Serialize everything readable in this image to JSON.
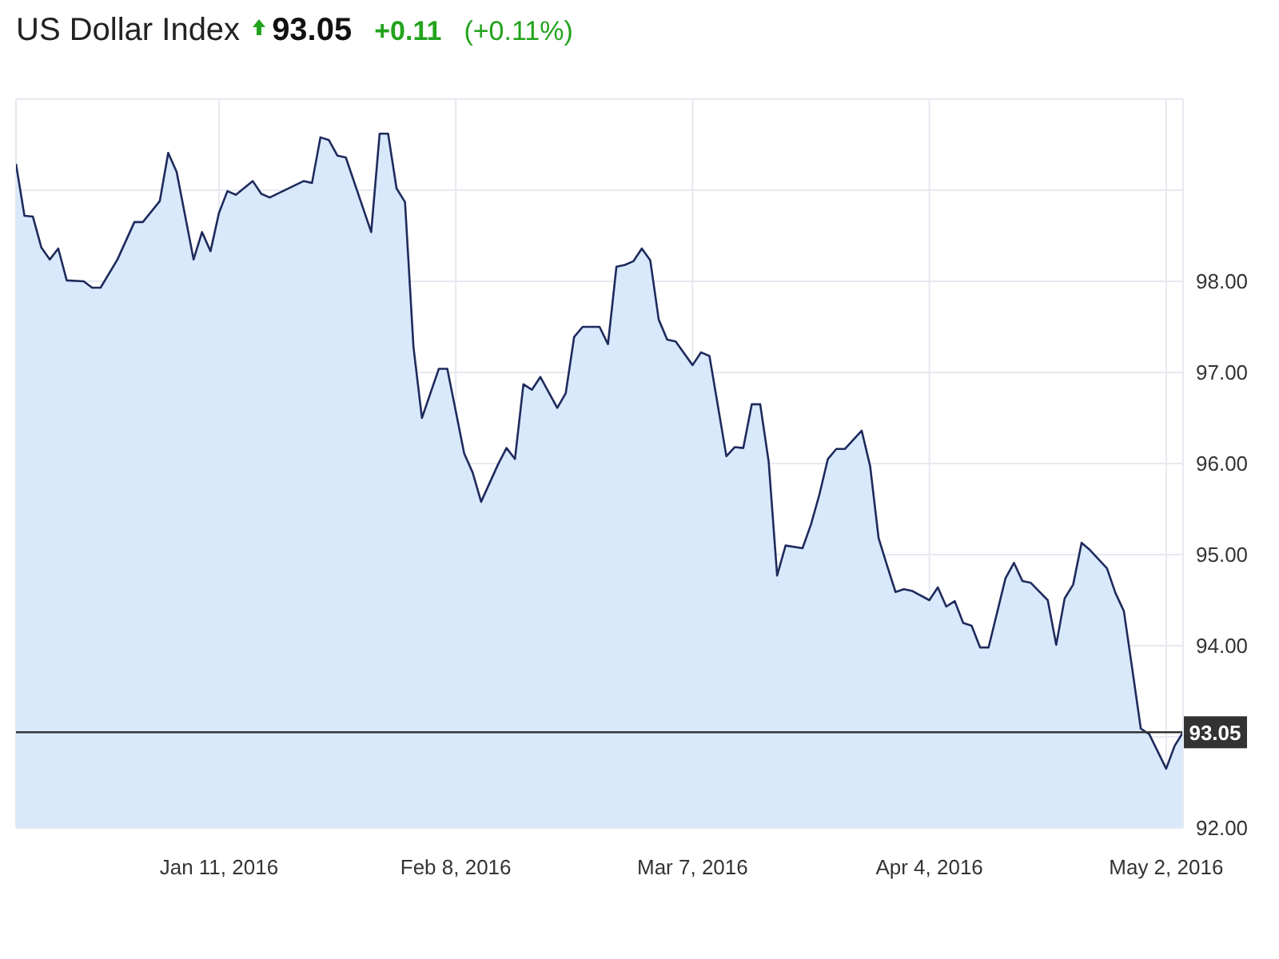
{
  "chart_data": {
    "type": "area",
    "title": "US Dollar Index",
    "annotations": [
      "93.05",
      "+0.11",
      "(+0.11%)"
    ],
    "x": [
      "2015-12-18",
      "2015-12-19",
      "2015-12-20",
      "2015-12-21",
      "2015-12-22",
      "2015-12-23",
      "2015-12-24",
      "2015-12-26",
      "2015-12-27",
      "2015-12-28",
      "2015-12-30",
      "2016-01-01",
      "2016-01-02",
      "2016-01-04",
      "2016-01-05",
      "2016-01-06",
      "2016-01-08",
      "2016-01-09",
      "2016-01-10",
      "2016-01-11",
      "2016-01-12",
      "2016-01-13",
      "2016-01-15",
      "2016-01-16",
      "2016-01-17",
      "2016-01-19",
      "2016-01-21",
      "2016-01-22",
      "2016-01-23",
      "2016-01-24",
      "2016-01-25",
      "2016-01-26",
      "2016-01-29",
      "2016-01-30",
      "2016-01-31",
      "2016-02-01",
      "2016-02-02",
      "2016-02-03",
      "2016-02-04",
      "2016-02-06",
      "2016-02-07",
      "2016-02-09",
      "2016-02-10",
      "2016-02-11",
      "2016-02-13",
      "2016-02-14",
      "2016-02-15",
      "2016-02-16",
      "2016-02-17",
      "2016-02-18",
      "2016-02-20",
      "2016-02-21",
      "2016-02-22",
      "2016-02-23",
      "2016-02-25",
      "2016-02-26",
      "2016-02-27",
      "2016-02-28",
      "2016-02-29",
      "2016-03-01",
      "2016-03-02",
      "2016-03-03",
      "2016-03-04",
      "2016-03-05",
      "2016-03-07",
      "2016-03-08",
      "2016-03-09",
      "2016-03-11",
      "2016-03-12",
      "2016-03-13",
      "2016-03-14",
      "2016-03-15",
      "2016-03-16",
      "2016-03-17",
      "2016-03-18",
      "2016-03-20",
      "2016-03-21",
      "2016-03-22",
      "2016-03-23",
      "2016-03-24",
      "2016-03-25",
      "2016-03-27",
      "2016-03-28",
      "2016-03-29",
      "2016-03-30",
      "2016-03-31",
      "2016-04-01",
      "2016-04-02",
      "2016-04-04",
      "2016-04-05",
      "2016-04-06",
      "2016-04-07",
      "2016-04-08",
      "2016-04-09",
      "2016-04-10",
      "2016-04-11",
      "2016-04-13",
      "2016-04-14",
      "2016-04-15",
      "2016-04-16",
      "2016-04-18",
      "2016-04-19",
      "2016-04-20",
      "2016-04-21",
      "2016-04-22",
      "2016-04-23",
      "2016-04-25",
      "2016-04-26",
      "2016-04-27",
      "2016-04-28",
      "2016-04-29",
      "2016-04-30",
      "2016-05-02",
      "2016-05-03",
      "2016-05-04"
    ],
    "series": [
      {
        "color": "#1f2a5c",
        "values": [
          99.29,
          98.72,
          98.71,
          98.37,
          98.24,
          98.36,
          98.01,
          98.0,
          97.93,
          97.93,
          98.24,
          98.65,
          98.65,
          98.88,
          99.41,
          99.2,
          98.24,
          98.54,
          98.33,
          98.75,
          98.99,
          98.95,
          99.1,
          98.96,
          98.92,
          99.01,
          99.1,
          99.08,
          99.58,
          99.55,
          99.38,
          99.36,
          98.54,
          99.62,
          99.62,
          99.02,
          98.87,
          97.28,
          96.5,
          97.04,
          97.04,
          96.11,
          95.9,
          95.58,
          95.99,
          96.17,
          96.05,
          96.87,
          96.81,
          96.95,
          96.61,
          96.77,
          97.39,
          97.5,
          97.5,
          97.31,
          98.16,
          98.18,
          98.22,
          98.36,
          98.23,
          97.58,
          97.36,
          97.34,
          97.08,
          97.22,
          97.18,
          96.08,
          96.18,
          96.17,
          96.65,
          96.65,
          96.02,
          94.77,
          95.1,
          95.07,
          95.33,
          95.66,
          96.05,
          96.16,
          96.16,
          96.36,
          95.97,
          95.18,
          94.88,
          94.59,
          94.62,
          94.6,
          94.5,
          94.64,
          94.43,
          94.49,
          94.25,
          94.22,
          93.98,
          93.98,
          94.74,
          94.91,
          94.71,
          94.69,
          94.5,
          94.01,
          94.52,
          94.67,
          95.13,
          95.05,
          94.85,
          94.58,
          94.38,
          93.74,
          93.09,
          93.03,
          92.65,
          92.9,
          93.05
        ]
      }
    ],
    "xlim": [
      "2015-12-18",
      "2016-05-04"
    ],
    "xticks": [
      {
        "value": "2016-01-11",
        "label": "Jan 11, 2016"
      },
      {
        "value": "2016-02-08",
        "label": "Feb 8, 2016"
      },
      {
        "value": "2016-03-07",
        "label": "Mar 7, 2016"
      },
      {
        "value": "2016-04-04",
        "label": "Apr 4, 2016"
      },
      {
        "value": "2016-05-02",
        "label": "May 2, 2016"
      }
    ],
    "ylim": [
      92,
      100
    ],
    "yticks": [
      {
        "value": 92,
        "label": "92.00"
      },
      {
        "value": 93,
        "label": null
      },
      {
        "value": 94,
        "label": "94.00"
      },
      {
        "value": 95,
        "label": "95.00"
      },
      {
        "value": 96,
        "label": "96.00"
      },
      {
        "value": 97,
        "label": "97.00"
      },
      {
        "value": 98,
        "label": "98.00"
      },
      {
        "value": 99,
        "label": null
      }
    ],
    "ref_lines": [
      {
        "axis": "y",
        "value": 93.05,
        "label": "93.05",
        "color": "#333333"
      }
    ],
    "grid": true,
    "marker": "none"
  }
}
